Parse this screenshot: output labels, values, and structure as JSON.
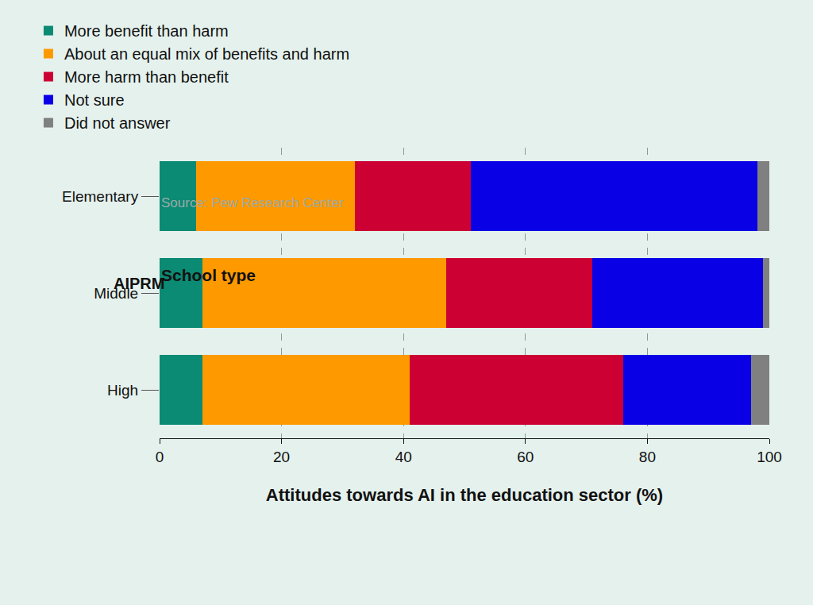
{
  "chart_data": {
    "type": "bar",
    "orientation": "horizontal",
    "stacked": true,
    "ylabel": "School type",
    "xlabel": "Attitudes towards AI in the education sector (%)",
    "source": "Source: Pew Research Center",
    "annotations": [
      "AIPRM"
    ],
    "categories": [
      "Elementary",
      "Middle",
      "High"
    ],
    "series": [
      {
        "name": "More benefit than harm",
        "color": "#0b8a74",
        "values": [
          6,
          7,
          7
        ]
      },
      {
        "name": "About an equal mix of benefits and harm",
        "color": "#ff9900",
        "values": [
          26,
          40,
          34
        ]
      },
      {
        "name": "More harm than benefit",
        "color": "#cc0033",
        "values": [
          19,
          24,
          35
        ]
      },
      {
        "name": "Not sure",
        "color": "#0a00e6",
        "values": [
          47,
          28,
          21
        ]
      },
      {
        "name": "Did not answer",
        "color": "#808080",
        "values": [
          2,
          1,
          3
        ]
      }
    ],
    "xlim": [
      0,
      100
    ],
    "xticks": [
      0,
      20,
      40,
      60,
      80,
      100
    ],
    "grid": true,
    "legend": "top-left"
  }
}
